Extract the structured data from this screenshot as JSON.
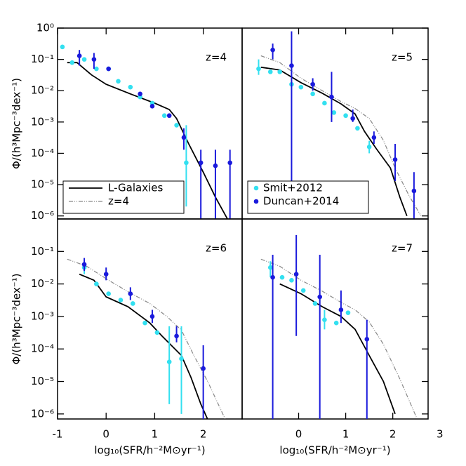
{
  "chart_data": [
    {
      "type": "line",
      "label": "z=4",
      "log_y": true,
      "ylabel": "Φ/(h³Mpc⁻³dex⁻¹)",
      "xlim": [
        -1,
        2.8
      ],
      "ylim": [
        8e-07,
        1
      ],
      "yticks": [
        {
          "value": 1,
          "label": "10⁰"
        },
        {
          "value": 0.1,
          "label": "10⁻¹"
        },
        {
          "value": 0.01,
          "label": "10⁻²"
        },
        {
          "value": 0.001,
          "label": "10⁻³"
        },
        {
          "value": 0.0001,
          "label": "10⁻⁴"
        },
        {
          "value": 1e-05,
          "label": "10⁻⁵"
        },
        {
          "value": 1e-06,
          "label": "10⁻⁶"
        }
      ],
      "legend": {
        "position": "lower left",
        "entries": [
          {
            "name": "L-Galaxies",
            "color": "#000000",
            "style": "solid"
          },
          {
            "name": "z=4",
            "color": "#888888",
            "style": "dashdot"
          }
        ]
      },
      "series": [
        {
          "kind": "line",
          "style": "solid",
          "color": "#000000",
          "x": [
            -0.8,
            -0.6,
            -0.3,
            0,
            0.5,
            1.0,
            1.3,
            1.45,
            1.7,
            2.0,
            2.25,
            2.5
          ],
          "values": [
            0.079,
            0.079,
            0.032,
            0.016,
            0.0079,
            0.004,
            0.0025,
            0.0013,
            0.0002,
            2.5e-05,
            4e-06,
            7.9e-07
          ]
        },
        {
          "kind": "points",
          "color": "#33e0f0",
          "x": [
            -0.9,
            -0.7,
            -0.45,
            -0.2,
            0.05,
            0.25,
            0.5,
            0.7,
            0.95,
            1.2,
            1.45,
            1.65
          ],
          "values": [
            0.25,
            0.079,
            0.1,
            0.05,
            0.05,
            0.02,
            0.013,
            0.0063,
            0.004,
            0.0016,
            0.00079,
            5e-05
          ],
          "lower": [
            null,
            null,
            null,
            null,
            null,
            null,
            null,
            null,
            null,
            null,
            null,
            2e-06
          ],
          "upper": [
            null,
            null,
            null,
            null,
            null,
            null,
            null,
            null,
            null,
            null,
            null,
            0.00079
          ]
        },
        {
          "kind": "points",
          "color": "#1a1adc",
          "x": [
            -0.55,
            -0.25,
            0.05,
            0.7,
            0.95,
            1.3,
            1.6,
            1.95,
            2.25,
            2.55
          ],
          "values": [
            0.13,
            0.1,
            0.05,
            0.0079,
            0.0032,
            0.0016,
            0.00032,
            5e-05,
            4e-05,
            5e-05
          ],
          "lower": [
            0.063,
            0.05,
            null,
            null,
            null,
            null,
            0.00013,
            8e-07,
            8e-07,
            8e-07
          ],
          "upper": [
            0.2,
            0.16,
            null,
            null,
            null,
            null,
            0.00063,
            0.00013,
            0.00013,
            0.00013
          ]
        }
      ]
    },
    {
      "type": "line",
      "label": "z=5",
      "log_y": true,
      "xlim": [
        -1.2,
        2.75
      ],
      "ylim": [
        8e-07,
        1
      ],
      "legend": {
        "position": "lower left",
        "entries": [
          {
            "name": "Smit+2012",
            "color": "#33e0f0",
            "style": "dot"
          },
          {
            "name": "Duncan+2014",
            "color": "#1a1adc",
            "style": "dot"
          }
        ]
      },
      "series": [
        {
          "kind": "line",
          "style": "dashdot",
          "color": "#888888",
          "x": [
            -0.8,
            -0.4,
            0.05,
            0.5,
            0.9,
            1.2,
            1.5,
            1.8,
            2.05,
            2.35,
            2.6
          ],
          "values": [
            0.13,
            0.079,
            0.025,
            0.01,
            0.0045,
            0.0027,
            0.0013,
            0.00026,
            3.4e-05,
            4.3e-06,
            1e-06
          ]
        },
        {
          "kind": "line",
          "style": "solid",
          "color": "#000000",
          "x": [
            -0.8,
            -0.4,
            0.05,
            0.5,
            0.9,
            1.2,
            1.4,
            1.65,
            1.95,
            2.15,
            2.3
          ],
          "values": [
            0.056,
            0.046,
            0.018,
            0.0083,
            0.0038,
            0.0018,
            0.0005,
            0.00014,
            3.4e-05,
            4e-06,
            1e-06
          ]
        },
        {
          "kind": "points",
          "color": "#33e0f0",
          "x": [
            -0.85,
            -0.6,
            -0.4,
            -0.15,
            0.05,
            0.3,
            0.55,
            0.75,
            1.0,
            1.25,
            1.5
          ],
          "values": [
            0.05,
            0.04,
            0.04,
            0.016,
            0.013,
            0.0079,
            0.004,
            0.002,
            0.0016,
            0.00063,
            0.00016
          ],
          "lower": [
            0.032,
            null,
            null,
            null,
            null,
            null,
            null,
            null,
            null,
            null,
            0.0001
          ],
          "upper": [
            0.1,
            null,
            null,
            null,
            null,
            null,
            null,
            null,
            null,
            null,
            0.00025
          ]
        },
        {
          "kind": "points",
          "color": "#1a1adc",
          "x": [
            -0.55,
            -0.15,
            0.3,
            0.7,
            1.15,
            1.6,
            2.05,
            2.45
          ],
          "values": [
            0.2,
            0.063,
            0.016,
            0.0063,
            0.0013,
            0.00032,
            6.3e-05,
            6.3e-06
          ],
          "lower": [
            0.1,
            6.3e-06,
            0.01,
            0.001,
            0.001,
            0.0002,
            1.3e-05,
            8e-07
          ],
          "upper": [
            0.32,
            0.79,
            0.025,
            0.04,
            0.0025,
            0.0005,
            0.0002,
            2.5e-05
          ]
        }
      ]
    },
    {
      "type": "line",
      "label": "z=6",
      "log_y": true,
      "ylabel": "Φ/(h³Mpc⁻³dex⁻¹)",
      "xlabel": "log₁₀(SFR/h⁻²M⊙yr⁻¹)",
      "xlim": [
        -1,
        2.8
      ],
      "ylim": [
        7e-07,
        1
      ],
      "xticks": [
        -1,
        0,
        1,
        2
      ],
      "yticks": [
        {
          "value": 0.1,
          "label": "10⁻¹"
        },
        {
          "value": 0.01,
          "label": "10⁻²"
        },
        {
          "value": 0.001,
          "label": "10⁻³"
        },
        {
          "value": 0.0001,
          "label": "10⁻⁴"
        },
        {
          "value": 1e-05,
          "label": "10⁻⁵"
        },
        {
          "value": 1e-06,
          "label": "10⁻⁶"
        }
      ],
      "series": [
        {
          "kind": "line",
          "style": "dashdot",
          "color": "#888888",
          "x": [
            -0.8,
            -0.4,
            0.05,
            0.45,
            0.9,
            1.25,
            1.55,
            1.8,
            2.1,
            2.45
          ],
          "values": [
            0.058,
            0.035,
            0.013,
            0.0058,
            0.0025,
            0.001,
            0.00038,
            6.6e-05,
            9.3e-06,
            7e-07
          ]
        },
        {
          "kind": "line",
          "style": "solid",
          "color": "#000000",
          "x": [
            -0.55,
            -0.25,
            0,
            0.45,
            0.9,
            1.15,
            1.55,
            1.75,
            1.95,
            2.1
          ],
          "values": [
            0.02,
            0.013,
            0.004,
            0.002,
            0.00063,
            0.00025,
            6.3e-05,
            1.3e-05,
            2e-06,
            6.3e-07
          ]
        },
        {
          "kind": "points",
          "color": "#33e0f0",
          "x": [
            -0.45,
            -0.2,
            0.05,
            0.3,
            0.55,
            0.8,
            1.05,
            1.3,
            1.55
          ],
          "values": [
            0.032,
            0.01,
            0.005,
            0.0032,
            0.0025,
            0.00063,
            0.00032,
            4e-05,
            5e-05
          ],
          "lower": [
            0.02,
            null,
            null,
            null,
            null,
            null,
            null,
            2e-06,
            1e-06
          ],
          "upper": [
            0.04,
            null,
            null,
            null,
            null,
            null,
            null,
            0.0005,
            0.0005
          ]
        },
        {
          "kind": "points",
          "color": "#1a1adc",
          "x": [
            -0.45,
            0,
            0.5,
            0.95,
            1.45,
            2.0
          ],
          "values": [
            0.04,
            0.02,
            0.005,
            0.001,
            0.00025,
            2.5e-05
          ],
          "lower": [
            0.025,
            0.013,
            0.0032,
            0.00063,
            0.00016,
            7e-07
          ],
          "upper": [
            0.063,
            0.032,
            0.0079,
            0.0016,
            0.0005,
            0.00013
          ]
        }
      ]
    },
    {
      "type": "line",
      "label": "z=7",
      "log_y": true,
      "xlabel": "log₁₀(SFR/h⁻²M⊙yr⁻¹)",
      "xlim": [
        -1.2,
        2.75
      ],
      "ylim": [
        7e-07,
        1
      ],
      "xticks": [
        0,
        1,
        2,
        3
      ],
      "series": [
        {
          "kind": "line",
          "style": "dashdot",
          "color": "#888888",
          "x": [
            -0.8,
            -0.4,
            0.05,
            0.5,
            0.9,
            1.2,
            1.5,
            1.8,
            2.15,
            2.5
          ],
          "values": [
            0.058,
            0.035,
            0.013,
            0.006,
            0.0027,
            0.0016,
            0.00068,
            0.00014,
            1.2e-05,
            8e-07
          ]
        },
        {
          "kind": "line",
          "style": "solid",
          "color": "#000000",
          "x": [
            -0.4,
            0.05,
            0.5,
            0.9,
            1.2,
            1.5,
            1.8,
            2.05
          ],
          "values": [
            0.01,
            0.005,
            0.002,
            0.001,
            0.0004,
            6.3e-05,
            1e-05,
            1e-06
          ]
        },
        {
          "kind": "points",
          "color": "#33e0f0",
          "x": [
            -0.6,
            -0.35,
            -0.15,
            0.1,
            0.35,
            0.55,
            0.8,
            1.05
          ],
          "values": [
            0.032,
            0.016,
            0.013,
            0.0063,
            0.0025,
            0.00079,
            0.00063,
            0.0013
          ],
          "lower": [
            0.016,
            null,
            null,
            null,
            null,
            0.0004,
            null,
            null
          ],
          "upper": [
            0.05,
            null,
            null,
            null,
            null,
            0.0016,
            null,
            null
          ]
        },
        {
          "kind": "points",
          "color": "#1a1adc",
          "x": [
            -0.55,
            -0.05,
            0.45,
            0.9,
            1.45
          ],
          "values": [
            0.016,
            0.02,
            0.004,
            0.0016,
            0.0002
          ],
          "lower": [
            7e-07,
            0.00025,
            7e-07,
            0.00063,
            7e-07
          ],
          "upper": [
            0.079,
            0.32,
            0.079,
            0.0063,
            0.00079
          ]
        }
      ]
    }
  ]
}
